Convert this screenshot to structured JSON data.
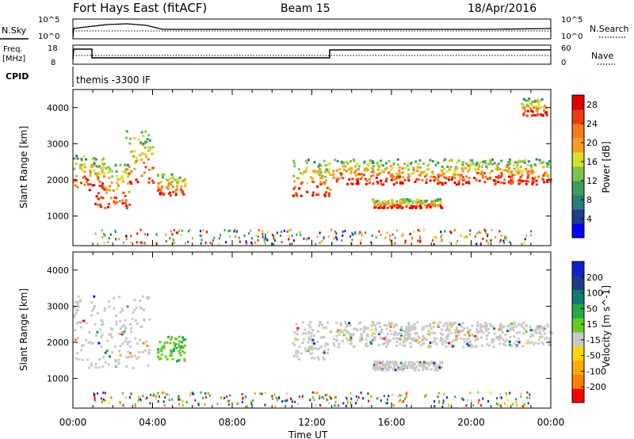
{
  "header": {
    "station": "Fort Hays East (fitACF)",
    "beam": "Beam 15",
    "date": "18/Apr/2016"
  },
  "time_axis": {
    "label": "Time UT",
    "ticks": [
      "00:00",
      "04:00",
      "08:00",
      "12:00",
      "16:00",
      "20:00",
      "00:00"
    ]
  },
  "summary_panels": {
    "nsky": {
      "label": "N.Sky",
      "left_ticks": [
        "10^5",
        "10^0"
      ],
      "right_label": "N.Search",
      "right_ticks": [
        "10^5",
        "10^0"
      ],
      "legend_style": "dotted"
    },
    "freq": {
      "label": "Freq.",
      "unit": "[MHz]",
      "left_ticks": [
        "18",
        "8"
      ],
      "right_label": "Nave",
      "right_ticks": [
        "60",
        "0"
      ],
      "legend_style": "dotted"
    },
    "cpid": {
      "label": "CPID",
      "text": "themis -3300 IF"
    }
  },
  "colors": {
    "power": [
      "#0000ff",
      "#1e3d8c",
      "#2e7a7a",
      "#3d9e5a",
      "#7fc24a",
      "#d8e026",
      "#f7a020",
      "#f47a1a",
      "#ee3a12",
      "#e00000"
    ],
    "velocity": [
      "#ff0000",
      "#ff7f00",
      "#ffaa00",
      "#ffd700",
      "#c8c8c8",
      "#66cc22",
      "#22aa44",
      "#0f7a6e",
      "#1e3a8c",
      "#1020cc"
    ]
  },
  "chart_data": [
    {
      "type": "heatmap",
      "title": "",
      "xlabel": "Time UT",
      "ylabel": "Slant Range [km]",
      "xlim": [
        "00:00",
        "24:00"
      ],
      "ylim": [
        180,
        4500
      ],
      "yticks": [
        1000,
        2000,
        3000,
        4000
      ],
      "colorbar": {
        "label": "Power [dB]",
        "ticks": [
          4,
          8,
          12,
          16,
          20,
          24,
          28
        ],
        "range": [
          0,
          30
        ]
      },
      "echo_regions": [
        {
          "t0": 0.0,
          "t1": 1.6,
          "r0": 1750,
          "r1": 2700
        },
        {
          "t0": 1.0,
          "t1": 2.8,
          "r0": 1250,
          "r1": 2500
        },
        {
          "t0": 2.6,
          "t1": 4.0,
          "r0": 1900,
          "r1": 3400
        },
        {
          "t0": 4.2,
          "t1": 5.6,
          "r0": 1600,
          "r1": 2200
        },
        {
          "t0": 11.0,
          "t1": 12.9,
          "r0": 1550,
          "r1": 2600
        },
        {
          "t0": 13.0,
          "t1": 24.0,
          "r0": 1900,
          "r1": 2600
        },
        {
          "t0": 15.0,
          "t1": 18.5,
          "r0": 1250,
          "r1": 1500
        },
        {
          "t0": 22.5,
          "t1": 23.8,
          "r0": 3800,
          "r1": 4300
        }
      ]
    },
    {
      "type": "heatmap",
      "title": "",
      "xlabel": "Time UT",
      "ylabel": "Slant Range [km]",
      "xlim": [
        "00:00",
        "24:00"
      ],
      "ylim": [
        180,
        4500
      ],
      "yticks": [
        1000,
        2000,
        3000,
        4000
      ],
      "colorbar": {
        "label": "Velocity [m s^-1]",
        "ticks": [
          200,
          100,
          50,
          15,
          -15,
          -50,
          -100,
          -200
        ]
      },
      "echo_regions": [
        {
          "t0": 0.0,
          "t1": 3.8,
          "r0": 1300,
          "r1": 3300,
          "velocity": 0
        },
        {
          "t0": 4.2,
          "t1": 5.6,
          "r0": 1500,
          "r1": 2200,
          "velocity": 40
        },
        {
          "t0": 11.0,
          "t1": 12.9,
          "r0": 1550,
          "r1": 2600,
          "velocity": 0
        },
        {
          "t0": 13.0,
          "t1": 24.0,
          "r0": 1900,
          "r1": 2600,
          "velocity": 0
        },
        {
          "t0": 15.0,
          "t1": 18.5,
          "r0": 1250,
          "r1": 1500,
          "velocity": 0
        }
      ]
    }
  ]
}
